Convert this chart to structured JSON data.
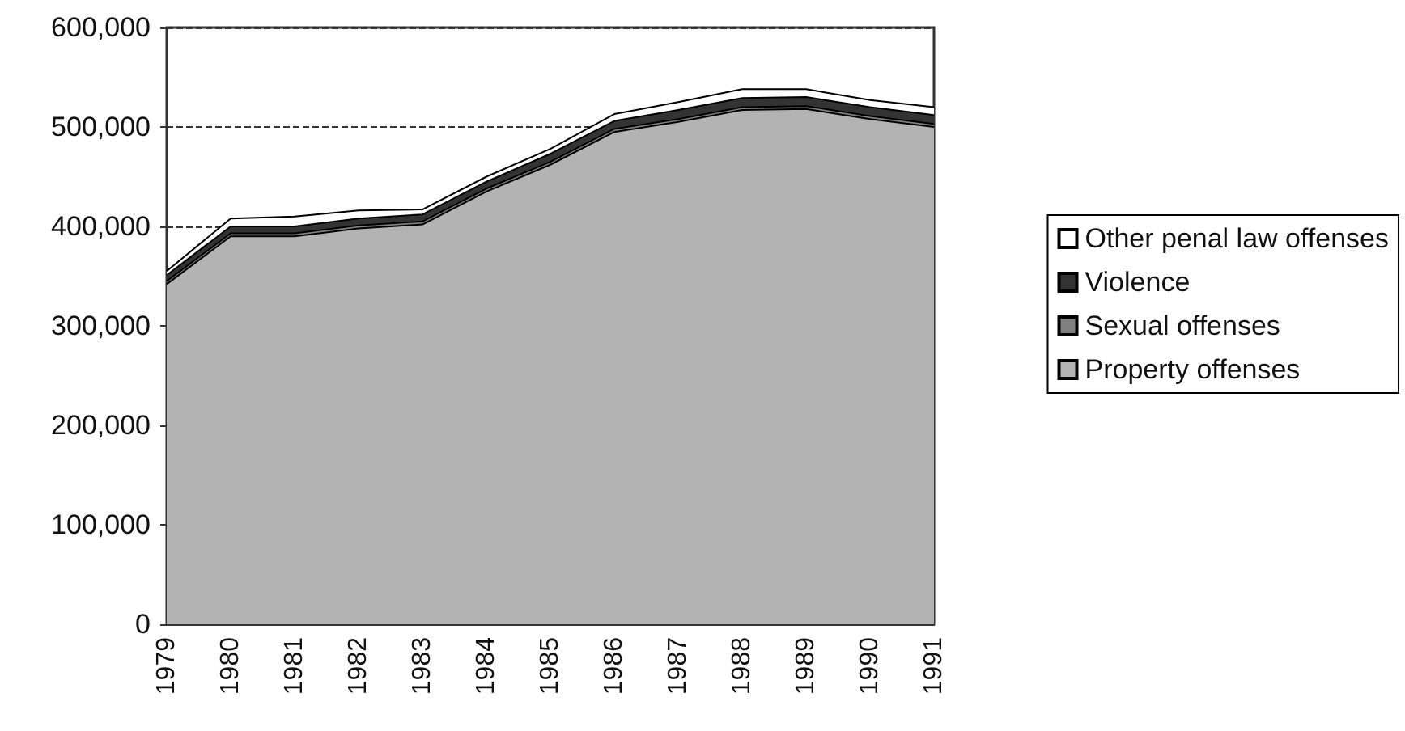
{
  "chart_data": {
    "type": "area",
    "stacked": true,
    "categories": [
      "1979",
      "1980",
      "1981",
      "1982",
      "1983",
      "1984",
      "1985",
      "1986",
      "1987",
      "1988",
      "1989",
      "1990",
      "1991"
    ],
    "series": [
      {
        "name": "Property offenses",
        "color": "#b3b3b3",
        "values": [
          342000,
          390000,
          390000,
          398000,
          402000,
          435000,
          462000,
          495000,
          505000,
          517000,
          518000,
          508000,
          500000
        ]
      },
      {
        "name": "Sexual offenses",
        "color": "#808080",
        "values": [
          3000,
          3000,
          3000,
          3000,
          3000,
          3000,
          3000,
          3000,
          3000,
          3000,
          3000,
          3000,
          3000
        ]
      },
      {
        "name": "Violence",
        "color": "#333333",
        "values": [
          6000,
          7000,
          7000,
          7000,
          7000,
          7000,
          8000,
          8000,
          9000,
          9000,
          9000,
          9000,
          9000
        ]
      },
      {
        "name": "Other penal law offenses",
        "color": "#ffffff",
        "values": [
          4000,
          8000,
          10000,
          8000,
          5000,
          5000,
          5000,
          7000,
          8000,
          9000,
          8000,
          7000,
          8000
        ]
      }
    ],
    "ylim": [
      0,
      600000
    ],
    "yticks": [
      0,
      {
        "value": 100000,
        "label": "100,000"
      },
      {
        "value": 200000,
        "label": "200,000"
      },
      {
        "value": 300000,
        "label": "300,000"
      },
      {
        "value": 400000,
        "label": "400,000"
      },
      {
        "value": 500000,
        "label": "500,000"
      },
      {
        "value": 600000,
        "label": "600,000"
      }
    ],
    "grid": "y",
    "legend": "right"
  }
}
